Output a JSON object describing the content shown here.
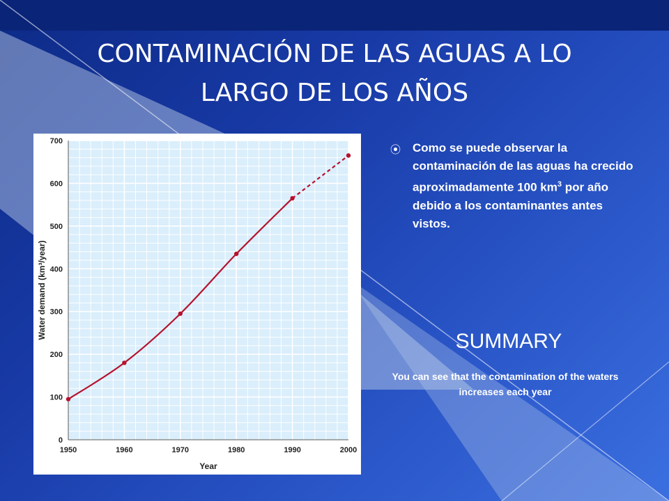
{
  "slide": {
    "title_line1": "CONTAMINACIÓN DE LAS AGUAS A LO",
    "title_line2": "LARGO DE LOS AÑOS",
    "bullet_before_sup": "Como se puede observar la contaminación de las aguas ha crecido aproximadamente 100 km",
    "bullet_sup": "3",
    "bullet_after_sup": " por año debido a los contaminantes antes vistos.",
    "bullet_icon": "circle-bullet-icon",
    "summary_heading": "SUMMARY",
    "summary_text": "You can see that the contamination of the waters increases each year"
  },
  "colors": {
    "background": "#1d3fae",
    "chart_background": "#daeefb",
    "grid": "#ffffff",
    "line": "#b5122e"
  },
  "chart_data": {
    "type": "line",
    "xlabel": "Year",
    "ylabel": "Water demand (km³/year)",
    "x_ticks": [
      "1950",
      "1960",
      "1970",
      "1980",
      "1990",
      "2000"
    ],
    "y_ticks": [
      "0",
      "100",
      "200",
      "300",
      "400",
      "500",
      "600",
      "700"
    ],
    "xlim": [
      1950,
      2000
    ],
    "ylim": [
      0,
      700
    ],
    "grid": true,
    "series": [
      {
        "points": [
          {
            "x": 1950,
            "y": 95
          },
          {
            "x": 1960,
            "y": 180
          },
          {
            "x": 1970,
            "y": 295
          },
          {
            "x": 1980,
            "y": 435
          },
          {
            "x": 1990,
            "y": 565
          },
          {
            "x": 2000,
            "y": 665
          }
        ],
        "projected_from": 1990
      }
    ]
  }
}
